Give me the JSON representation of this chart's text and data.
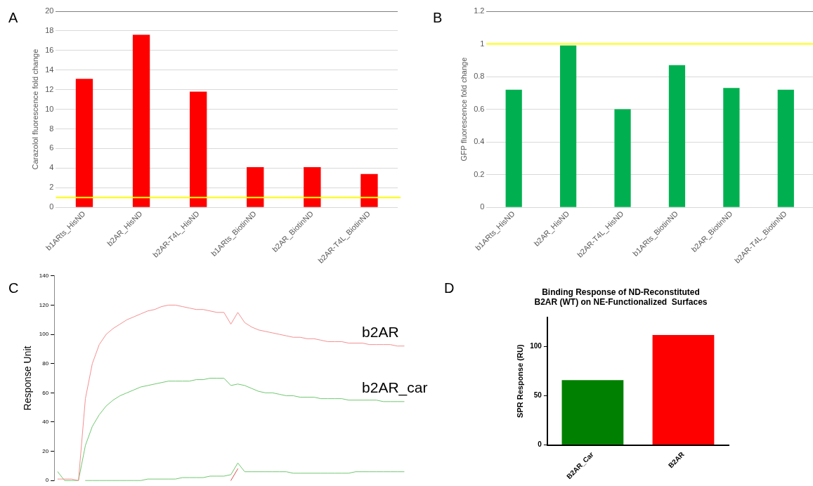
{
  "chart_data": [
    {
      "type": "bar",
      "annotations": [
        "A"
      ],
      "ylabel": "Carazolol fluorescence fold change",
      "categories": [
        "b1ARts_HisND",
        "b2AR_HisND",
        "b2AR-T4L_HisND",
        "b1ARts_BiotinND",
        "b2AR_BiotinND",
        "b2AR-T4L_BiotinND"
      ],
      "values": [
        13.1,
        17.6,
        11.8,
        4.1,
        4.1,
        3.4
      ],
      "color": "#ff0000",
      "ylim": [
        0,
        20
      ],
      "yticks": [
        0,
        2,
        4,
        6,
        8,
        10,
        12,
        14,
        16,
        18,
        20
      ],
      "grid": "y",
      "legend": false,
      "ref_lines": [
        {
          "axis": "y",
          "value": 1,
          "color": "#ffff00"
        }
      ]
    },
    {
      "type": "bar",
      "annotations": [
        "B"
      ],
      "ylabel": "GFP fluorescence fold change",
      "categories": [
        "b1ARts_HisND",
        "b2AR_HisND",
        "b2AR-T4L_HisND",
        "b1ARts_BiotinND",
        "b2AR_BiotinND",
        "b2AR-T4L_BiotinND"
      ],
      "values": [
        0.72,
        0.99,
        0.6,
        0.87,
        0.73,
        0.72
      ],
      "color": "#00b050",
      "ylim": [
        0,
        1.2
      ],
      "yticks": [
        0,
        0.2,
        0.4,
        0.6,
        0.8,
        1,
        1.2
      ],
      "grid": "y",
      "legend": false,
      "ref_lines": [
        {
          "axis": "y",
          "value": 1,
          "color": "#ffff00"
        }
      ]
    },
    {
      "type": "line",
      "annotations": [
        "C"
      ],
      "ylabel": "Response Unit",
      "categories": [
        null,
        null,
        null,
        null,
        null,
        null,
        null,
        null,
        null,
        null,
        null,
        null,
        null,
        null,
        null,
        null,
        null,
        null,
        null,
        null,
        null,
        null,
        null,
        null,
        null,
        null,
        null,
        null,
        null,
        null,
        null,
        null,
        null,
        null,
        null,
        null,
        null,
        null,
        null,
        null,
        null,
        null,
        null,
        null,
        null,
        null,
        null,
        null,
        null,
        null,
        null
      ],
      "ylim": [
        0,
        140
      ],
      "yticks": [
        0,
        20,
        40,
        60,
        80,
        100,
        120,
        140
      ],
      "tick_labels": "y",
      "grid": false,
      "legend": false,
      "marker": "none",
      "series": [
        {
          "color": "#e05050",
          "values": [
            null,
            null,
            null,
            null,
            null,
            null,
            null,
            null,
            null,
            null,
            null,
            null,
            null,
            null,
            null,
            null,
            null,
            null,
            null,
            null,
            null,
            null,
            null,
            null,
            null,
            0,
            8,
            null,
            null,
            null,
            null,
            null,
            null,
            null,
            null,
            null,
            null,
            null,
            null,
            null,
            null,
            null,
            null,
            null,
            null,
            null,
            null,
            null,
            null,
            null,
            null
          ]
        },
        {
          "color": "#70c870",
          "values": [
            null,
            null,
            null,
            null,
            0,
            0,
            0,
            0,
            0,
            0,
            0,
            0,
            0,
            1,
            1,
            1,
            1,
            1,
            2,
            2,
            2,
            2,
            3,
            3,
            3,
            4,
            12,
            6,
            6,
            6,
            6,
            6,
            6,
            6,
            5,
            5,
            5,
            5,
            5,
            5,
            5,
            5,
            5,
            6,
            6,
            6,
            6,
            6,
            6,
            6,
            6
          ]
        },
        {
          "name": "b2AR",
          "color": "#f49090",
          "values": [
            1,
            1,
            1,
            0,
            56,
            80,
            93,
            100,
            104,
            107,
            110,
            112,
            114,
            116,
            117,
            119,
            120,
            120,
            119,
            118,
            117,
            117,
            116,
            115,
            115,
            107,
            115,
            108,
            105,
            103,
            102,
            101,
            100,
            99,
            98,
            98,
            97,
            97,
            96,
            95,
            95,
            95,
            94,
            94,
            94,
            93,
            93,
            93,
            93,
            92,
            92
          ]
        },
        {
          "name": "b2AR_car",
          "color": "#70c870",
          "values": [
            6,
            0,
            0,
            0,
            24,
            37,
            45,
            51,
            55,
            58,
            60,
            62,
            64,
            65,
            66,
            67,
            68,
            68,
            68,
            68,
            69,
            69,
            70,
            70,
            70,
            65,
            66,
            65,
            63,
            61,
            60,
            60,
            59,
            58,
            58,
            57,
            57,
            57,
            56,
            56,
            56,
            56,
            55,
            55,
            55,
            55,
            55,
            54,
            54,
            54,
            54
          ]
        }
      ]
    },
    {
      "type": "bar",
      "annotations": [
        "D"
      ],
      "title": "Binding Response of ND-Reconstituted\nB2AR (WT) on NE-Functionalized  Surfaces",
      "ylabel": "SPR Response (RU)",
      "categories": [
        "B2AR_Car",
        "B2AR"
      ],
      "values": [
        66,
        112
      ],
      "colors": [
        "#008000",
        "#ff0000"
      ],
      "ylim": [
        0,
        130
      ],
      "yticks": [
        0,
        50,
        100
      ],
      "grid": false,
      "legend": false
    }
  ]
}
